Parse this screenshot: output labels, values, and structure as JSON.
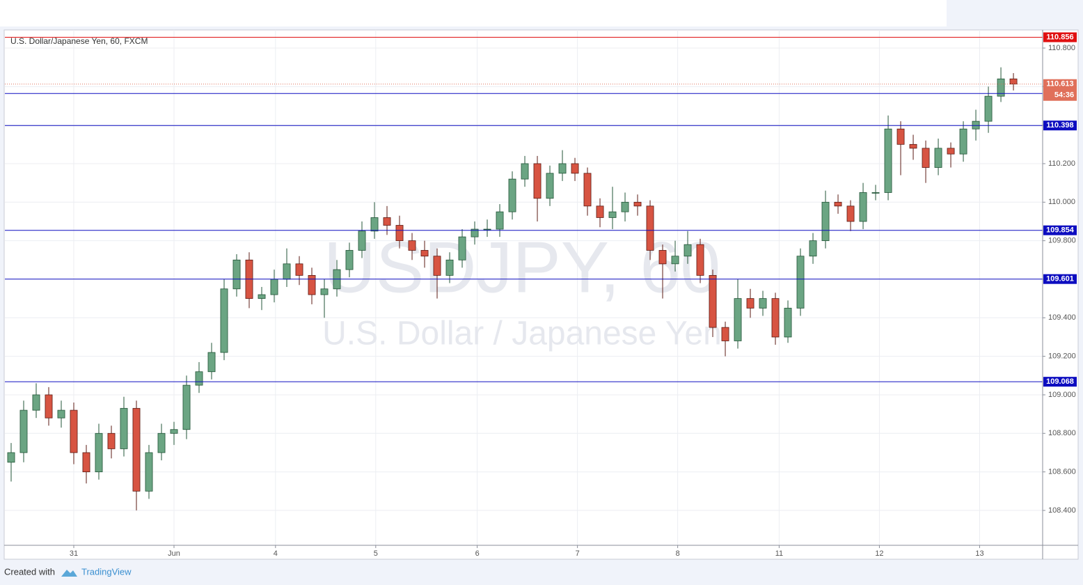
{
  "chart_data": {
    "type": "candlestick",
    "title": "U.S. Dollar/Japanese Yen, 60, FXCM",
    "watermark": "USDJPY, 60",
    "watermark_subtitle": "U.S. Dollar / Japanese Yen",
    "footer_text": "Created with",
    "footer_brand": "TradingView",
    "xlim": [
      0,
      82.83
    ],
    "xticks": [
      {
        "value": 5.5,
        "label": "31"
      },
      {
        "value": 13.5,
        "label": "Jun"
      },
      {
        "value": 21.6,
        "label": "4"
      },
      {
        "value": 29.6,
        "label": "5"
      },
      {
        "value": 37.7,
        "label": "6"
      },
      {
        "value": 45.7,
        "label": "7"
      },
      {
        "value": 53.7,
        "label": "8"
      },
      {
        "value": 61.8,
        "label": "11"
      },
      {
        "value": 69.8,
        "label": "12"
      },
      {
        "value": 77.8,
        "label": "13"
      }
    ],
    "ylim": [
      108.219,
      110.894
    ],
    "yticks": [
      {
        "value": 108.4,
        "label": "108.400"
      },
      {
        "value": 108.6,
        "label": "108.600"
      },
      {
        "value": 108.8,
        "label": "108.800"
      },
      {
        "value": 109.0,
        "label": "109.000"
      },
      {
        "value": 109.2,
        "label": "109.200"
      },
      {
        "value": 109.4,
        "label": "109.400"
      },
      {
        "value": 109.6,
        "label": "109.600"
      },
      {
        "value": 109.8,
        "label": "109.800"
      },
      {
        "value": 110.0,
        "label": "110.000"
      },
      {
        "value": 110.2,
        "label": "110.200"
      },
      {
        "value": 110.4,
        "label": "110.400"
      },
      {
        "value": 110.6,
        "label": "110.600"
      },
      {
        "value": 110.8,
        "label": "110.800"
      }
    ],
    "grid": true,
    "up_color": "#6ba583",
    "up_border": "#225437",
    "down_color": "#d75442",
    "down_border": "#5b1a13",
    "open": [
      108.65,
      108.7,
      108.92,
      109.0,
      108.88,
      108.92,
      108.7,
      108.6,
      108.8,
      108.72,
      108.93,
      108.5,
      108.7,
      108.8,
      108.82,
      109.05,
      109.12,
      109.22,
      109.55,
      109.7,
      109.5,
      109.52,
      109.6,
      109.68,
      109.62,
      109.52,
      109.55,
      109.65,
      109.75,
      109.85,
      109.92,
      109.88,
      109.8,
      109.75,
      109.72,
      109.62,
      109.7,
      109.82,
      109.86,
      109.86,
      109.95,
      110.12,
      110.2,
      110.02,
      110.15,
      110.2,
      110.15,
      109.98,
      109.92,
      109.95,
      110.0,
      109.98,
      109.75,
      109.68,
      109.72,
      109.78,
      109.62,
      109.35,
      109.28,
      109.5,
      109.45,
      109.5,
      109.3,
      109.45,
      109.72,
      109.8,
      110.0,
      109.98,
      109.9,
      110.05,
      110.05,
      110.38,
      110.3,
      110.28,
      110.18,
      110.28,
      110.25,
      110.38,
      110.42,
      110.55,
      110.64
    ],
    "high": [
      108.75,
      108.97,
      109.06,
      109.04,
      108.97,
      108.96,
      108.74,
      108.85,
      108.84,
      108.99,
      108.97,
      108.74,
      108.85,
      108.86,
      109.1,
      109.17,
      109.27,
      109.6,
      109.73,
      109.74,
      109.56,
      109.65,
      109.76,
      109.72,
      109.66,
      109.6,
      109.7,
      109.79,
      109.9,
      110.0,
      109.98,
      109.93,
      109.84,
      109.8,
      109.76,
      109.74,
      109.86,
      109.9,
      109.91,
      109.99,
      110.16,
      110.24,
      110.24,
      110.19,
      110.27,
      110.23,
      110.18,
      110.02,
      110.08,
      110.05,
      110.04,
      110.01,
      109.78,
      109.8,
      109.85,
      109.81,
      109.65,
      109.38,
      109.6,
      109.55,
      109.54,
      109.53,
      109.49,
      109.76,
      109.84,
      110.06,
      110.04,
      110.01,
      110.1,
      110.09,
      110.45,
      110.42,
      110.35,
      110.32,
      110.33,
      110.31,
      110.42,
      110.48,
      110.6,
      110.7,
      110.67
    ],
    "low": [
      108.55,
      108.65,
      108.88,
      108.84,
      108.83,
      108.64,
      108.54,
      108.56,
      108.67,
      108.68,
      108.4,
      108.46,
      108.66,
      108.74,
      108.77,
      109.01,
      109.08,
      109.18,
      109.51,
      109.45,
      109.44,
      109.48,
      109.56,
      109.57,
      109.47,
      109.4,
      109.51,
      109.61,
      109.71,
      109.81,
      109.83,
      109.76,
      109.7,
      109.66,
      109.5,
      109.58,
      109.66,
      109.78,
      109.82,
      109.82,
      109.91,
      110.08,
      109.9,
      109.98,
      110.11,
      110.11,
      109.93,
      109.87,
      109.86,
      109.9,
      109.93,
      109.7,
      109.5,
      109.64,
      109.68,
      109.58,
      109.3,
      109.2,
      109.24,
      109.4,
      109.41,
      109.26,
      109.27,
      109.41,
      109.68,
      109.76,
      109.94,
      109.85,
      109.86,
      110.01,
      110.01,
      110.14,
      110.22,
      110.1,
      110.14,
      110.18,
      110.21,
      110.32,
      110.36,
      110.52,
      110.58
    ],
    "close": [
      108.7,
      108.92,
      109.0,
      108.88,
      108.92,
      108.7,
      108.6,
      108.8,
      108.72,
      108.93,
      108.5,
      108.7,
      108.8,
      108.82,
      109.05,
      109.12,
      109.22,
      109.55,
      109.7,
      109.5,
      109.52,
      109.6,
      109.68,
      109.62,
      109.52,
      109.55,
      109.65,
      109.75,
      109.85,
      109.92,
      109.88,
      109.8,
      109.75,
      109.72,
      109.62,
      109.7,
      109.82,
      109.86,
      109.86,
      109.95,
      110.12,
      110.2,
      110.02,
      110.15,
      110.2,
      110.15,
      109.98,
      109.92,
      109.95,
      110.0,
      109.98,
      109.75,
      109.68,
      109.72,
      109.78,
      109.62,
      109.35,
      109.28,
      109.5,
      109.45,
      109.5,
      109.3,
      109.45,
      109.72,
      109.8,
      110.0,
      109.98,
      109.9,
      110.05,
      110.05,
      110.38,
      110.3,
      110.28,
      110.18,
      110.28,
      110.25,
      110.38,
      110.42,
      110.55,
      110.64,
      110.613
    ],
    "levels": [
      {
        "value": 110.856,
        "color": "#e01010"
      },
      {
        "value": 110.564,
        "color": "#0d0dc0"
      },
      {
        "value": 110.398,
        "color": "#0d0dc0"
      },
      {
        "value": 109.854,
        "color": "#0d0dc0"
      },
      {
        "value": 109.601,
        "color": "#0d0dc0"
      },
      {
        "value": 109.068,
        "color": "#0d0dc0"
      }
    ],
    "last_price": {
      "value": 110.613,
      "countdown": "54:36",
      "color": "#e0705a"
    }
  }
}
